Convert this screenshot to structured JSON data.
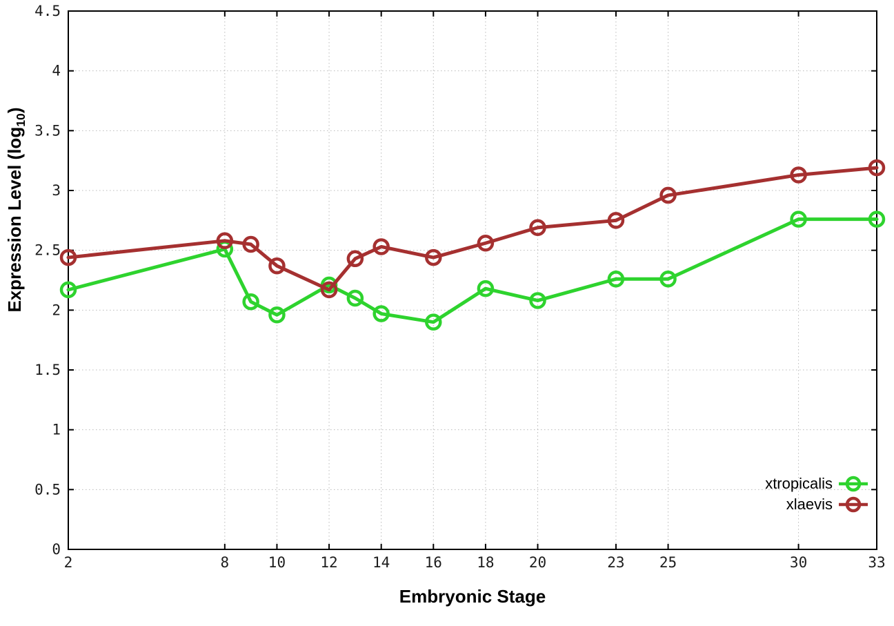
{
  "figure": {
    "background": "#ffffff",
    "border_color": "#000000",
    "grid_color": "#b9b9b9",
    "tick_color": "#000000"
  },
  "x_axis": {
    "label": "Embryonic Stage",
    "min": 2,
    "max": 33,
    "ticks": [
      2,
      8,
      10,
      12,
      14,
      16,
      18,
      20,
      23,
      25,
      30,
      33
    ],
    "tick_labels": [
      "2",
      "8",
      "10",
      "12",
      "14",
      "16",
      "18",
      "20",
      "23",
      "25",
      "30",
      "33"
    ]
  },
  "y_axis": {
    "label_main": "Expression Level (log",
    "label_sub": "10",
    "label_close": ")",
    "min": 0,
    "max": 4.5,
    "ticks": [
      0,
      0.5,
      1,
      1.5,
      2,
      2.5,
      3,
      3.5,
      4,
      4.5
    ],
    "tick_labels": [
      "0",
      "0.5",
      "1",
      "1.5",
      "2",
      "2.5",
      "3",
      "3.5",
      "4",
      "4.5"
    ]
  },
  "chart_data": {
    "type": "line",
    "title": "",
    "xlabel": "Embryonic Stage",
    "ylabel": "Expression Level (log10)",
    "xlim": [
      2,
      33
    ],
    "ylim": [
      0,
      4.5
    ],
    "grid": true,
    "legend_position": "bottom-right",
    "marker": "open-circle",
    "x": [
      2,
      8,
      9,
      10,
      12,
      13,
      14,
      16,
      18,
      20,
      23,
      25,
      30,
      33
    ],
    "series": [
      {
        "name": "xtropicalis",
        "color": "#2ed32e",
        "values": [
          2.17,
          2.51,
          2.07,
          1.96,
          2.21,
          2.1,
          1.97,
          1.9,
          2.18,
          2.08,
          2.26,
          2.26,
          2.76,
          2.76
        ]
      },
      {
        "name": "xlaevis",
        "color": "#a53030",
        "values": [
          2.44,
          2.58,
          2.55,
          2.37,
          2.17,
          2.43,
          2.53,
          2.44,
          2.56,
          2.69,
          2.75,
          2.96,
          3.13,
          3.19
        ]
      }
    ]
  }
}
